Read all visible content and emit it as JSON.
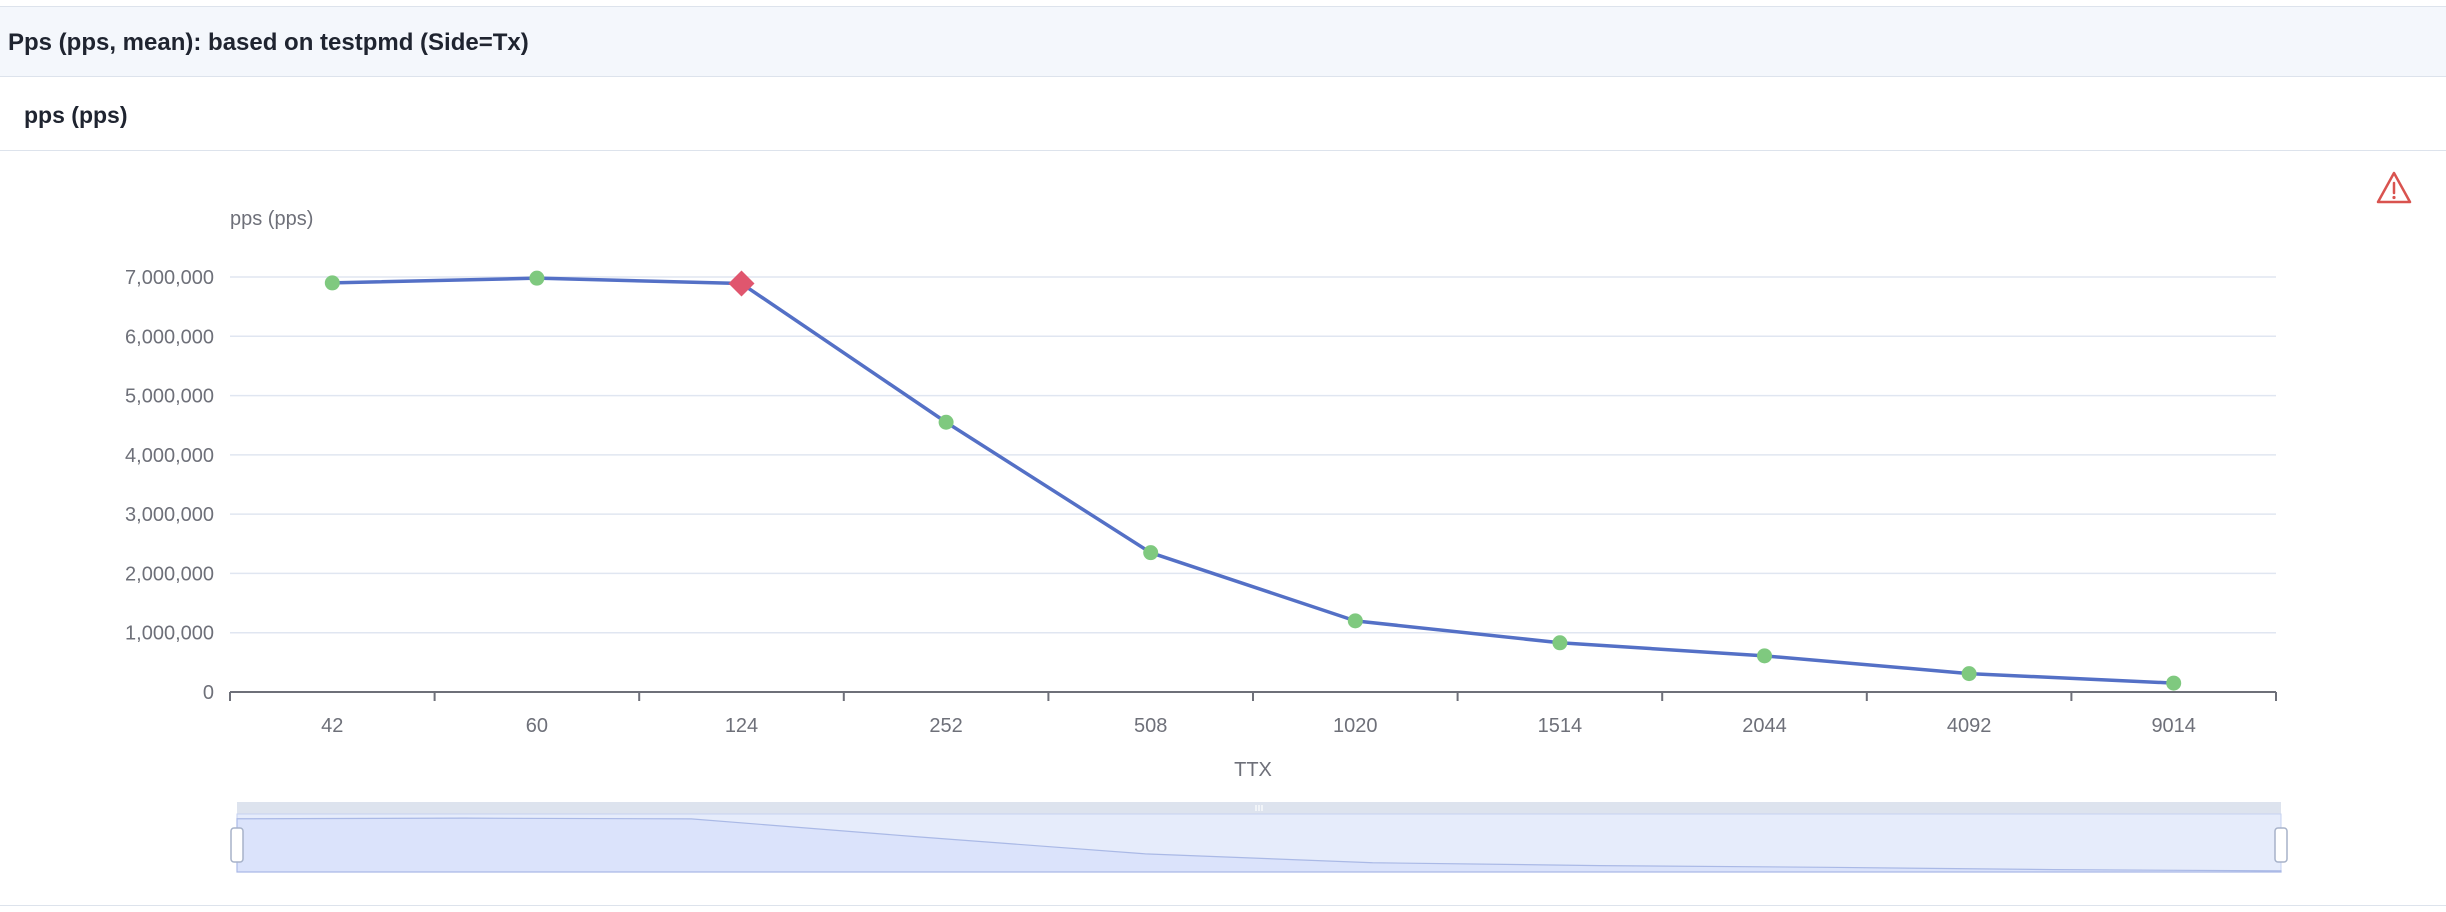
{
  "page": {
    "title": "Pps (pps, mean): based on testpmd (Side=Tx)"
  },
  "card": {
    "title": "pps (pps)"
  },
  "icons": {
    "warning": "warning-icon"
  },
  "colors": {
    "line": "#5470c6",
    "point": "#7fc97f",
    "highlight": "#e0566e",
    "grid": "#e0e6f1",
    "axis": "#6e7079",
    "zoom_fill": "#dbe3fb",
    "zoom_window": "#e6ecfb",
    "warning": "#d9534f"
  },
  "chart_data": {
    "type": "line",
    "xlabel": "TTX",
    "ylabel": "pps (pps)",
    "categories": [
      "42",
      "60",
      "124",
      "252",
      "508",
      "1020",
      "1514",
      "2044",
      "4092",
      "9014"
    ],
    "series": [
      {
        "values": [
          6900000,
          6980000,
          6890000,
          4550000,
          2350000,
          1200000,
          830000,
          610000,
          310000,
          150000
        ]
      }
    ],
    "highlight": {
      "category": "124",
      "value": 6890000,
      "marker": "diamond"
    },
    "ylim": [
      0,
      7000000
    ],
    "yticks": [
      0,
      1000000,
      2000000,
      3000000,
      4000000,
      5000000,
      6000000,
      7000000
    ],
    "grid": true,
    "legend": "none",
    "zoom_slider": {
      "start_percent": 0,
      "end_percent": 100
    }
  }
}
